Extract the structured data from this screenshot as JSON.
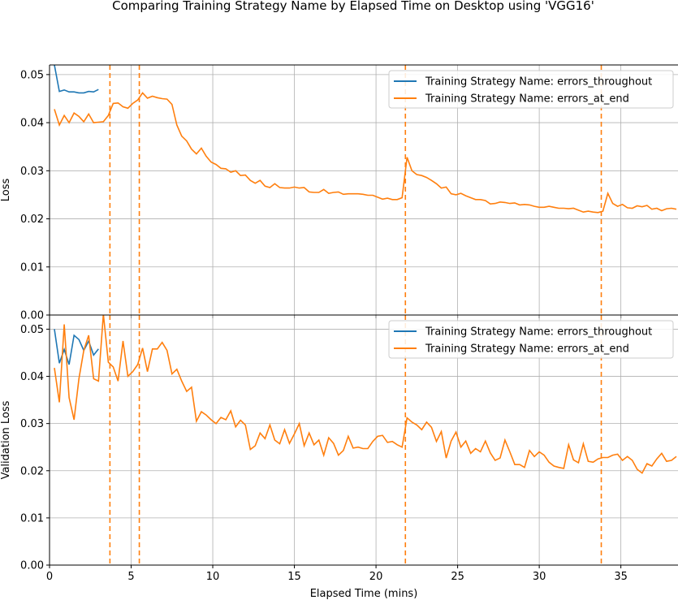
{
  "chart_data": {
    "type": "line",
    "title": "Comparing Training Strategy Name by Elapsed Time on Desktop using 'VGG16'",
    "xlabel": "Elapsed Time (mins)",
    "xlim": [
      0,
      38.5
    ],
    "x_ticks": [
      "0",
      "5",
      "10",
      "15",
      "20",
      "25",
      "30",
      "35"
    ],
    "grid": true,
    "legend_position": "top-right",
    "vlines": {
      "color": "#ff7f0e",
      "style": "dashed",
      "x": [
        3.7,
        5.5,
        21.8,
        33.8
      ]
    },
    "colors": {
      "errors_throughout": "#1f77b4",
      "errors_at_end": "#ff7f0e"
    },
    "panels": [
      {
        "ylabel": "Loss",
        "ylim": [
          0,
          0.052
        ],
        "y_ticks": [
          "0.00",
          "0.01",
          "0.02",
          "0.03",
          "0.04",
          "0.05"
        ],
        "series": [
          {
            "name": "Training Strategy Name: errors_throughout",
            "key": "errors_throughout",
            "x": [
              0.3,
              0.6,
              0.9,
              1.2,
              1.5,
              1.8,
              2.1,
              2.4,
              2.7,
              3.0
            ],
            "y": [
              0.052,
              0.0465,
              0.0468,
              0.0464,
              0.0464,
              0.0462,
              0.0462,
              0.0465,
              0.0464,
              0.0469
            ]
          },
          {
            "name": "Training Strategy Name: errors_at_end",
            "key": "errors_at_end",
            "x": [
              0.3,
              0.6,
              0.9,
              1.2,
              1.5,
              1.8,
              2.1,
              2.4,
              2.7,
              3.0,
              3.3,
              3.6,
              3.9,
              4.2,
              4.5,
              4.8,
              5.1,
              5.4,
              5.7,
              6.0,
              6.3,
              6.6,
              6.9,
              7.2,
              7.5,
              7.8,
              8.1,
              8.4,
              8.7,
              9.0,
              9.3,
              9.6,
              9.9,
              10.2,
              10.5,
              10.8,
              11.1,
              11.4,
              11.7,
              12.0,
              12.3,
              12.6,
              12.9,
              13.2,
              13.5,
              13.8,
              14.1,
              14.4,
              14.7,
              15.0,
              15.3,
              15.6,
              15.9,
              16.2,
              16.5,
              16.8,
              17.1,
              17.4,
              17.7,
              18.0,
              18.3,
              18.6,
              18.9,
              19.2,
              19.5,
              19.8,
              20.1,
              20.4,
              20.7,
              21.0,
              21.3,
              21.6,
              21.9,
              22.2,
              22.5,
              22.8,
              23.1,
              23.4,
              23.7,
              24.0,
              24.3,
              24.6,
              24.9,
              25.2,
              25.5,
              25.8,
              26.1,
              26.4,
              26.7,
              27.0,
              27.3,
              27.6,
              27.9,
              28.2,
              28.5,
              28.8,
              29.1,
              29.4,
              29.7,
              30.0,
              30.3,
              30.6,
              30.9,
              31.2,
              31.5,
              31.8,
              32.1,
              32.4,
              32.7,
              33.0,
              33.3,
              33.6,
              33.9,
              34.2,
              34.5,
              34.8,
              35.1,
              35.4,
              35.7,
              36.0,
              36.3,
              36.6,
              36.9,
              37.2,
              37.5,
              37.8,
              38.1,
              38.4
            ],
            "y": [
              0.0428,
              0.0395,
              0.0415,
              0.04,
              0.042,
              0.0413,
              0.0402,
              0.0418,
              0.04,
              0.0401,
              0.0402,
              0.0415,
              0.044,
              0.0441,
              0.0433,
              0.043,
              0.044,
              0.0447,
              0.0462,
              0.0451,
              0.0455,
              0.0452,
              0.045,
              0.0449,
              0.0438,
              0.0395,
              0.0372,
              0.0362,
              0.0345,
              0.0335,
              0.0347,
              0.033,
              0.0318,
              0.0313,
              0.0305,
              0.0304,
              0.0297,
              0.03,
              0.029,
              0.0291,
              0.028,
              0.0274,
              0.028,
              0.0268,
              0.0265,
              0.0273,
              0.0265,
              0.0264,
              0.0264,
              0.0266,
              0.0264,
              0.0265,
              0.0256,
              0.0255,
              0.0255,
              0.0261,
              0.0253,
              0.0255,
              0.0256,
              0.0251,
              0.0252,
              0.0252,
              0.0252,
              0.0251,
              0.0249,
              0.0249,
              0.0245,
              0.0241,
              0.0243,
              0.024,
              0.024,
              0.0244,
              0.0328,
              0.03,
              0.0292,
              0.029,
              0.0286,
              0.028,
              0.0273,
              0.0264,
              0.0266,
              0.0252,
              0.025,
              0.0253,
              0.0248,
              0.0244,
              0.024,
              0.024,
              0.0238,
              0.0231,
              0.0232,
              0.0235,
              0.0234,
              0.0232,
              0.0233,
              0.0229,
              0.023,
              0.0229,
              0.0226,
              0.0224,
              0.0224,
              0.0226,
              0.0224,
              0.0222,
              0.0222,
              0.0221,
              0.0222,
              0.0218,
              0.0214,
              0.0216,
              0.0214,
              0.0213,
              0.0216,
              0.0253,
              0.0232,
              0.0226,
              0.023,
              0.0223,
              0.0222,
              0.0227,
              0.0225,
              0.0228,
              0.022,
              0.0222,
              0.0217,
              0.0221,
              0.0222,
              0.022
            ]
          }
        ]
      },
      {
        "ylabel": "Validation Loss",
        "ylim": [
          0,
          0.053
        ],
        "y_ticks": [
          "0.00",
          "0.01",
          "0.02",
          "0.03",
          "0.04",
          "0.05"
        ],
        "series": [
          {
            "name": "Training Strategy Name: errors_throughout",
            "key": "errors_throughout",
            "x": [
              0.3,
              0.6,
              0.9,
              1.2,
              1.5,
              1.8,
              2.1,
              2.4,
              2.7,
              3.0
            ],
            "y": [
              0.05,
              0.0428,
              0.0457,
              0.0425,
              0.0487,
              0.0478,
              0.0455,
              0.0475,
              0.0445,
              0.0458
            ]
          },
          {
            "name": "Training Strategy Name: errors_at_end",
            "key": "errors_at_end",
            "x": [
              0.3,
              0.6,
              0.9,
              1.2,
              1.5,
              1.8,
              2.1,
              2.4,
              2.7,
              3.0,
              3.3,
              3.6,
              3.9,
              4.2,
              4.5,
              4.8,
              5.1,
              5.4,
              5.7,
              6.0,
              6.3,
              6.6,
              6.9,
              7.2,
              7.5,
              7.8,
              8.1,
              8.4,
              8.7,
              9.0,
              9.3,
              9.6,
              9.9,
              10.2,
              10.5,
              10.8,
              11.1,
              11.4,
              11.7,
              12.0,
              12.3,
              12.6,
              12.9,
              13.2,
              13.5,
              13.8,
              14.1,
              14.4,
              14.7,
              15.0,
              15.3,
              15.6,
              15.9,
              16.2,
              16.5,
              16.8,
              17.1,
              17.4,
              17.7,
              18.0,
              18.3,
              18.6,
              18.9,
              19.2,
              19.5,
              19.8,
              20.1,
              20.4,
              20.7,
              21.0,
              21.3,
              21.6,
              21.9,
              22.2,
              22.5,
              22.8,
              23.1,
              23.4,
              23.7,
              24.0,
              24.3,
              24.6,
              24.9,
              25.2,
              25.5,
              25.8,
              26.1,
              26.4,
              26.7,
              27.0,
              27.3,
              27.6,
              27.9,
              28.2,
              28.5,
              28.8,
              29.1,
              29.4,
              29.7,
              30.0,
              30.3,
              30.6,
              30.9,
              31.2,
              31.5,
              31.8,
              32.1,
              32.4,
              32.7,
              33.0,
              33.3,
              33.6,
              33.9,
              34.2,
              34.5,
              34.8,
              35.1,
              35.4,
              35.7,
              36.0,
              36.3,
              36.6,
              36.9,
              37.2,
              37.5,
              37.8,
              38.1,
              38.4
            ],
            "y": [
              0.0418,
              0.0345,
              0.051,
              0.0355,
              0.0308,
              0.0395,
              0.0455,
              0.0487,
              0.0395,
              0.039,
              0.0532,
              0.043,
              0.042,
              0.039,
              0.0475,
              0.04,
              0.041,
              0.0425,
              0.046,
              0.041,
              0.0458,
              0.0458,
              0.0472,
              0.0455,
              0.0405,
              0.0415,
              0.039,
              0.0368,
              0.0377,
              0.0305,
              0.0325,
              0.0318,
              0.0308,
              0.03,
              0.0313,
              0.0308,
              0.0327,
              0.0293,
              0.0307,
              0.0297,
              0.0245,
              0.0253,
              0.028,
              0.0268,
              0.0297,
              0.0265,
              0.0257,
              0.0287,
              0.0258,
              0.0278,
              0.03,
              0.0253,
              0.028,
              0.0255,
              0.0265,
              0.0233,
              0.027,
              0.0258,
              0.0233,
              0.0243,
              0.0273,
              0.0248,
              0.025,
              0.0247,
              0.0247,
              0.0262,
              0.0273,
              0.0275,
              0.026,
              0.0262,
              0.0255,
              0.025,
              0.0312,
              0.0303,
              0.0297,
              0.0287,
              0.0303,
              0.0292,
              0.0262,
              0.0283,
              0.0227,
              0.0263,
              0.0282,
              0.025,
              0.0263,
              0.0237,
              0.0247,
              0.024,
              0.0263,
              0.0238,
              0.0222,
              0.0227,
              0.0265,
              0.024,
              0.0213,
              0.0213,
              0.0207,
              0.0243,
              0.023,
              0.024,
              0.0233,
              0.0218,
              0.021,
              0.0207,
              0.0205,
              0.0255,
              0.0223,
              0.0217,
              0.0257,
              0.022,
              0.0218,
              0.0225,
              0.0228,
              0.0228,
              0.0233,
              0.0235,
              0.0222,
              0.023,
              0.0222,
              0.0203,
              0.0195,
              0.0215,
              0.021,
              0.0225,
              0.0237,
              0.022,
              0.0222,
              0.023
            ]
          }
        ]
      }
    ]
  }
}
